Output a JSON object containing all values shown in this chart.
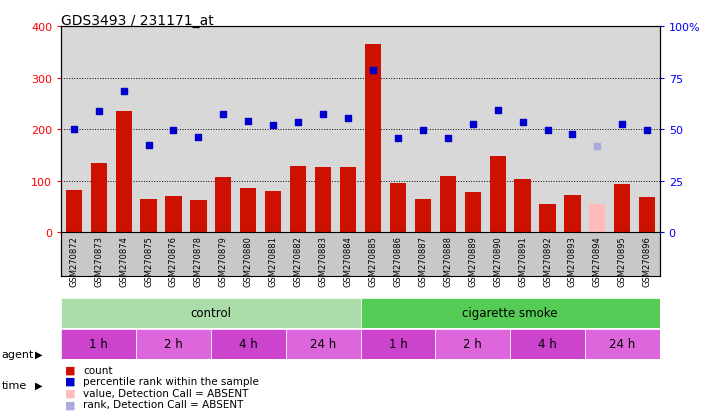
{
  "title": "GDS3493 / 231171_at",
  "samples": [
    "GSM270872",
    "GSM270873",
    "GSM270874",
    "GSM270875",
    "GSM270876",
    "GSM270878",
    "GSM270879",
    "GSM270880",
    "GSM270881",
    "GSM270882",
    "GSM270883",
    "GSM270884",
    "GSM270885",
    "GSM270886",
    "GSM270887",
    "GSM270888",
    "GSM270889",
    "GSM270890",
    "GSM270891",
    "GSM270892",
    "GSM270893",
    "GSM270894",
    "GSM270895",
    "GSM270896"
  ],
  "counts": [
    82,
    135,
    235,
    65,
    70,
    62,
    107,
    87,
    81,
    128,
    127,
    127,
    365,
    95,
    65,
    110,
    79,
    148,
    103,
    55,
    73,
    55,
    93,
    68
  ],
  "ranks_left": [
    200,
    235,
    273,
    170,
    199,
    184,
    230,
    215,
    209,
    213,
    230,
    222,
    315,
    183,
    198,
    183,
    210,
    237,
    213,
    198,
    190,
    168,
    210,
    198
  ],
  "absent_bar_idx": [
    21
  ],
  "absent_rank_idx": [
    21
  ],
  "bar_color": "#cc1100",
  "bar_absent_color": "#ffbbbb",
  "rank_color": "#0000cc",
  "rank_absent_color": "#aaaadd",
  "ylim": [
    0,
    400
  ],
  "yticks_left": [
    0,
    100,
    200,
    300,
    400
  ],
  "yticks_right_vals": [
    0,
    25,
    50,
    75,
    100
  ],
  "yticks_right_labels": [
    "0",
    "25",
    "50",
    "75",
    "100%"
  ],
  "grid_lines": [
    100,
    200,
    300
  ],
  "chart_bg": "#d8d8d8",
  "xlabel_bg": "#c8c8c8",
  "control_n": 12,
  "smoke_n": 12,
  "control_color": "#aaddaa",
  "smoke_color": "#55cc55",
  "time_colors": [
    "#cc44cc",
    "#dd66dd",
    "#cc44cc",
    "#dd66dd",
    "#cc44cc",
    "#dd66dd",
    "#cc44cc",
    "#dd66dd"
  ],
  "time_labels": [
    "1 h",
    "2 h",
    "4 h",
    "24 h",
    "1 h",
    "2 h",
    "4 h",
    "24 h"
  ],
  "time_spans": [
    3,
    3,
    3,
    3,
    3,
    3,
    3,
    3
  ],
  "legend_items": [
    {
      "color": "#cc1100",
      "label": "count"
    },
    {
      "color": "#0000cc",
      "label": "percentile rank within the sample"
    },
    {
      "color": "#ffbbbb",
      "label": "value, Detection Call = ABSENT"
    },
    {
      "color": "#aaaadd",
      "label": "rank, Detection Call = ABSENT"
    }
  ]
}
